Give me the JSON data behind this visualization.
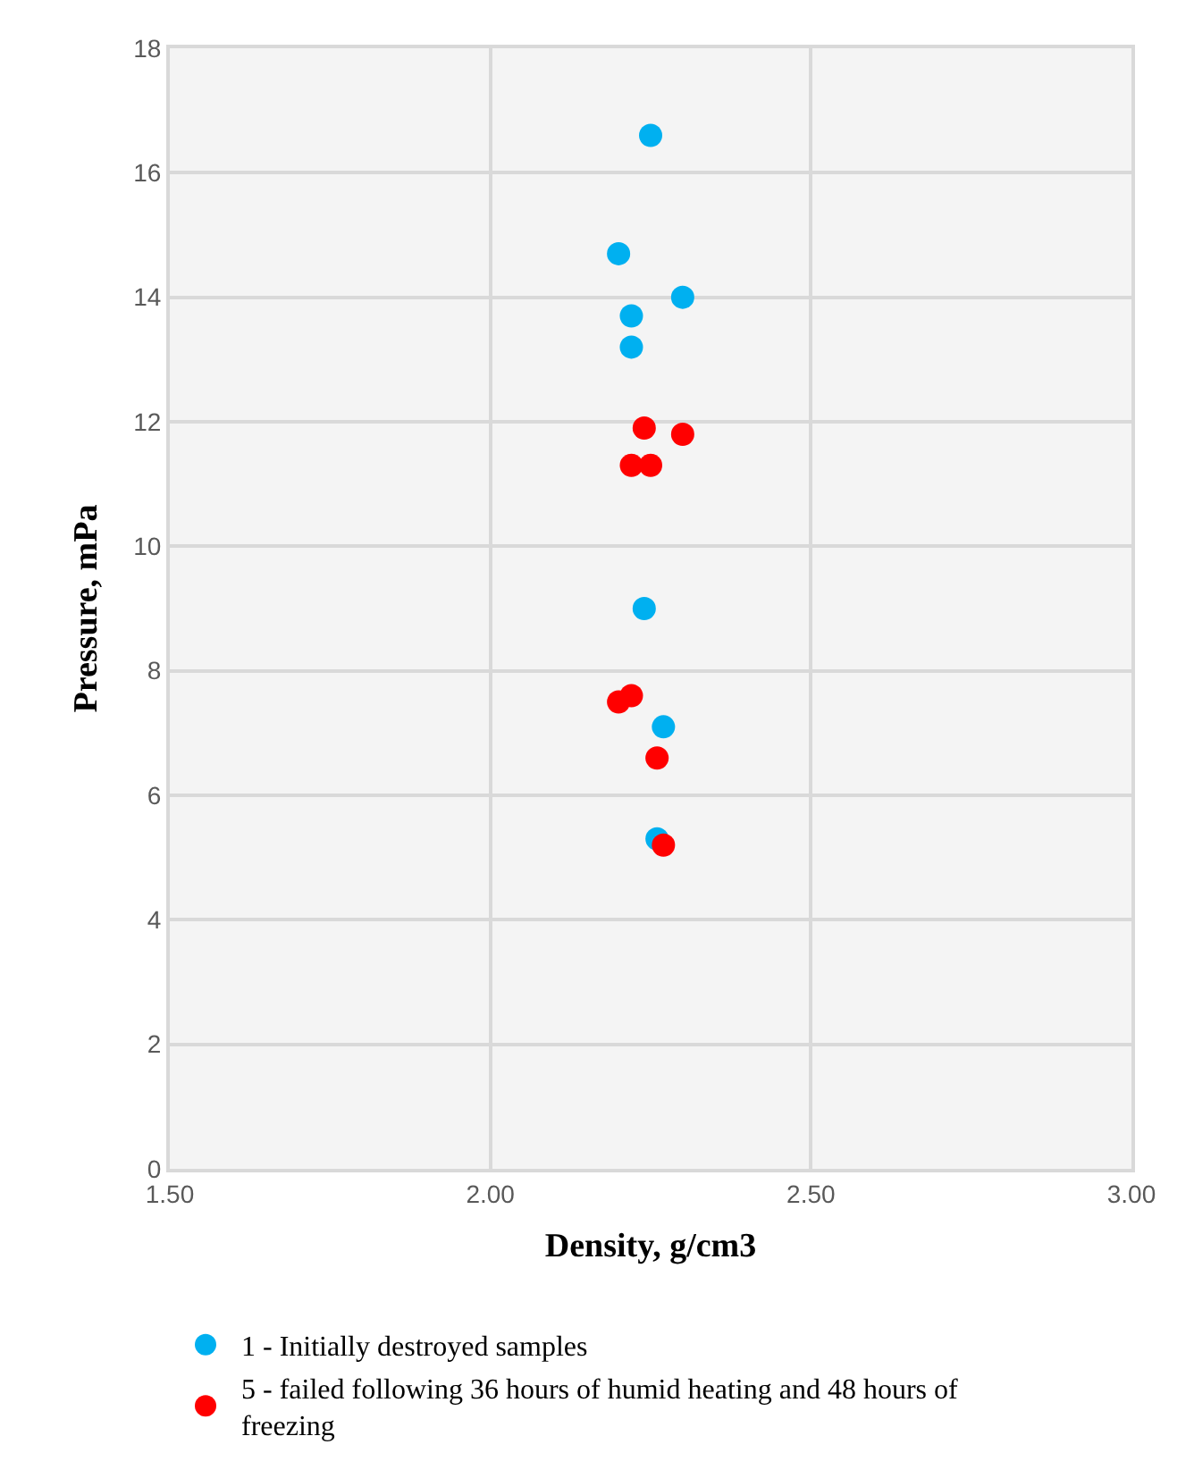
{
  "chart_data": {
    "type": "scatter",
    "xlabel": "Density, g/cm3",
    "ylabel": "Pressure, mPa",
    "xlim": [
      1.5,
      3.0
    ],
    "xticks": [
      {
        "value": 1.5,
        "label": "1.50"
      },
      {
        "value": 2.0,
        "label": "2.00"
      },
      {
        "value": 2.5,
        "label": "2.50"
      },
      {
        "value": 3.0,
        "label": "3.00"
      }
    ],
    "ylim": [
      0,
      18
    ],
    "yticks": [
      0,
      2,
      4,
      6,
      8,
      10,
      12,
      14,
      16,
      18
    ],
    "grid": true,
    "legend": "bottom",
    "marker": "circle",
    "series": [
      {
        "name": "1 - Initially destroyed samples",
        "color": "#00b0f0",
        "x": [
          2.25,
          2.2,
          2.3,
          2.22,
          2.22,
          2.24,
          2.27,
          2.26
        ],
        "values": [
          16.6,
          14.7,
          14.0,
          13.7,
          13.2,
          9.0,
          7.1,
          5.3
        ]
      },
      {
        "name": "5 - failed following 36 hours of humid heating and 48 hours of freezing",
        "color": "#ff0000",
        "x": [
          2.24,
          2.3,
          2.22,
          2.25,
          2.2,
          2.22,
          2.26,
          2.27
        ],
        "values": [
          11.9,
          11.8,
          11.3,
          11.3,
          7.5,
          7.6,
          6.6,
          5.2
        ]
      }
    ]
  }
}
